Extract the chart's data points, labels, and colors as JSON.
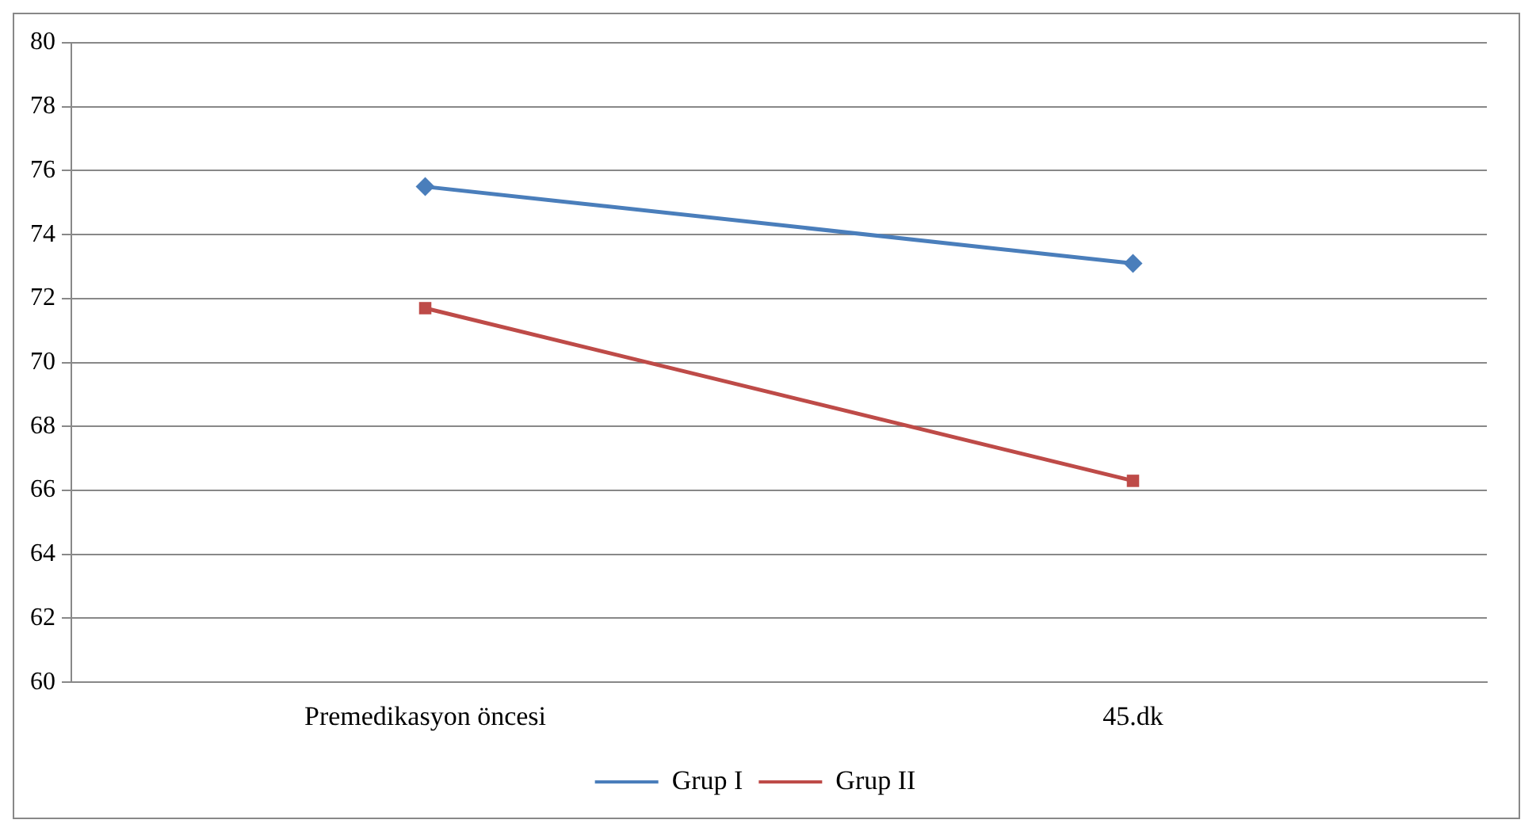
{
  "chart_data": {
    "type": "line",
    "categories": [
      "Premedikasyon öncesi",
      "45.dk"
    ],
    "series": [
      {
        "name": "Grup I",
        "color": "#4a7ebb",
        "marker": "diamond",
        "values": [
          75.5,
          73.1
        ]
      },
      {
        "name": "Grup II",
        "color": "#be4b48",
        "marker": "square",
        "values": [
          71.7,
          66.3
        ]
      }
    ],
    "ylim": [
      60,
      80
    ],
    "yticks": [
      60,
      62,
      64,
      66,
      68,
      70,
      72,
      74,
      76,
      78,
      80
    ],
    "grid": "y",
    "legend": "bottom",
    "line_style": "solid"
  }
}
